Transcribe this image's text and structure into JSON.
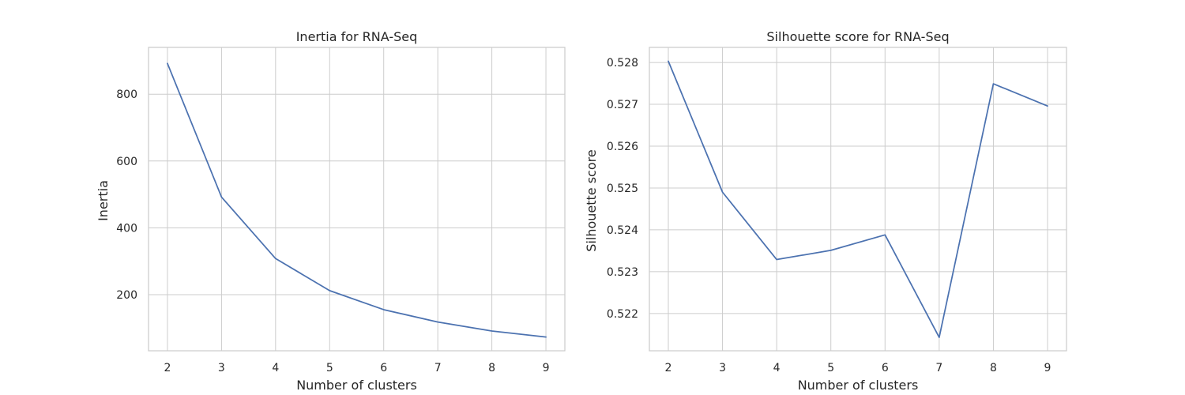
{
  "chart_data": [
    {
      "type": "line",
      "title": "Inertia for RNA-Seq",
      "xlabel": "Number of clusters",
      "ylabel": "Inertia",
      "x": [
        2,
        3,
        4,
        5,
        6,
        7,
        8,
        9
      ],
      "series": [
        {
          "values": [
            892,
            492,
            308,
            212,
            155,
            118,
            91,
            73
          ]
        }
      ],
      "xlim": [
        1.65,
        9.35
      ],
      "ylim": [
        32,
        940
      ],
      "xticks": [
        2,
        3,
        4,
        5,
        6,
        7,
        8,
        9
      ],
      "yticks": [
        200,
        400,
        600,
        800
      ],
      "grid": true,
      "line_color": "#4c72b0"
    },
    {
      "type": "line",
      "title": "Silhouette score for RNA-Seq",
      "xlabel": "Number of clusters",
      "ylabel": "Silhouette score",
      "x": [
        2,
        3,
        4,
        5,
        6,
        7,
        8,
        9
      ],
      "series": [
        {
          "values": [
            0.52803,
            0.5249,
            0.52329,
            0.52351,
            0.52388,
            0.52143,
            0.52749,
            0.52696
          ]
        }
      ],
      "xlim": [
        1.65,
        9.35
      ],
      "ylim": [
        0.52111,
        0.52836
      ],
      "xticks": [
        2,
        3,
        4,
        5,
        6,
        7,
        8,
        9
      ],
      "yticks": [
        0.522,
        0.523,
        0.524,
        0.525,
        0.526,
        0.527,
        0.528
      ],
      "ytick_decimals": 3,
      "grid": true,
      "line_color": "#4c72b0"
    }
  ]
}
